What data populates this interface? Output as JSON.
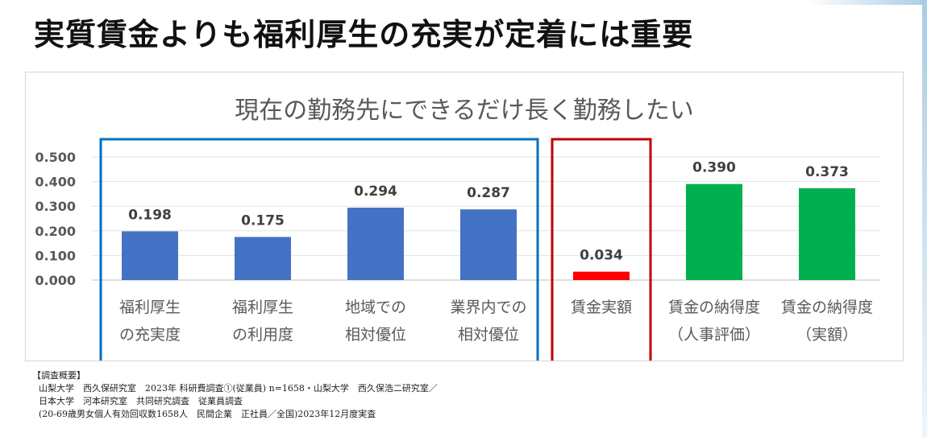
{
  "page": {
    "title": "実質賃金よりも福利厚生の充実が定着には重要"
  },
  "chart_data": {
    "type": "bar",
    "title": "現在の勤務先にできるだけ長く勤務したい",
    "categories": [
      [
        "福利厚生",
        "の充実度"
      ],
      [
        "福利厚生",
        "の利用度"
      ],
      [
        "地域での",
        "相対優位"
      ],
      [
        "業界内での",
        "相対優位"
      ],
      [
        "賃金実額"
      ],
      [
        "賃金の納得度",
        "（人事評価）"
      ],
      [
        "賃金の納得度",
        "（実額）"
      ]
    ],
    "values": [
      0.198,
      0.175,
      0.294,
      0.287,
      0.034,
      0.39,
      0.373
    ],
    "data_labels": [
      "0.198",
      "0.175",
      "0.294",
      "0.287",
      "0.034",
      "0.390",
      "0.373"
    ],
    "bar_colors": [
      "#4472c4",
      "#4472c4",
      "#4472c4",
      "#4472c4",
      "#ff0000",
      "#00b050",
      "#00b050"
    ],
    "yticks": [
      "0.000",
      "0.100",
      "0.200",
      "0.300",
      "0.400",
      "0.500"
    ],
    "ylim": [
      0,
      0.5
    ],
    "grid": true,
    "legend": "none",
    "highlight_groups": [
      {
        "name": "welfare-group",
        "color": "#0070c0",
        "start": 0,
        "end": 3
      },
      {
        "name": "wage-group",
        "color": "#c00000",
        "start": 4,
        "end": 4
      }
    ]
  },
  "survey": {
    "heading": "【調査概要】",
    "lines": [
      "山梨大学　西久保研究室　2023年 科研費調査①(従業員) n=1658・山梨大学　西久保浩二研究室／",
      "日本大学　河本研究室　共同研究調査　従業員調査",
      "(20-69歳男女個人有効回収数1658人　民間企業　正社員／全国)2023年12月度実査"
    ]
  }
}
